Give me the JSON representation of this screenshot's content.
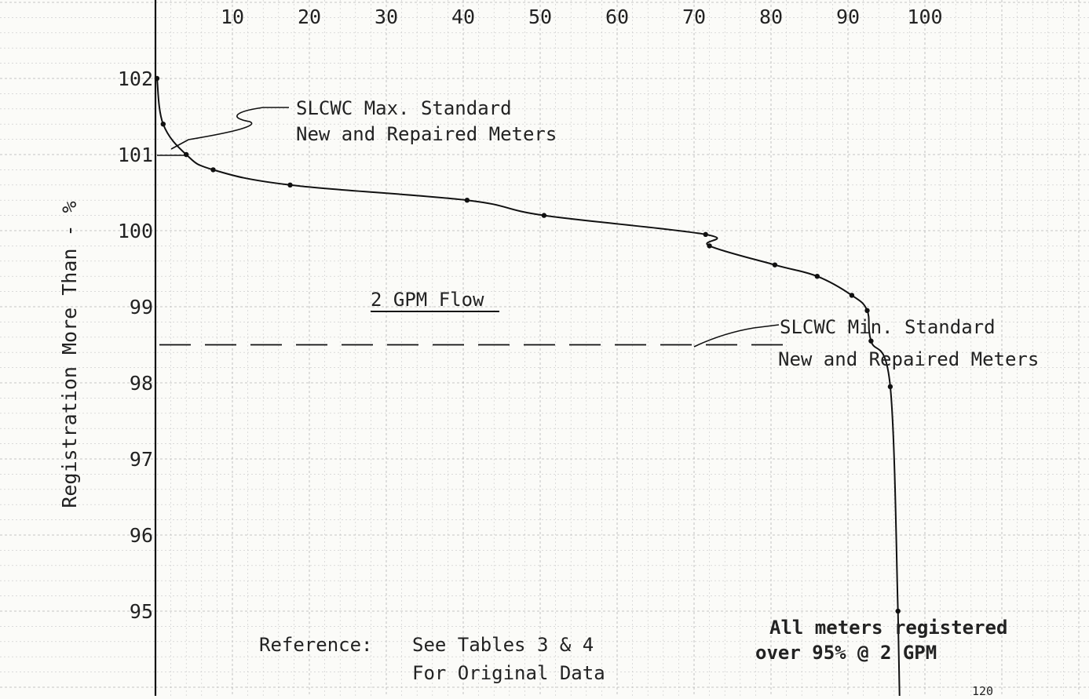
{
  "chart_data": {
    "type": "line",
    "title": "",
    "xlabel": "",
    "ylabel": "Registration More Than - %",
    "x_ticks": [
      "10",
      "20",
      "30",
      "40",
      "50",
      "60",
      "70",
      "80",
      "90",
      "100"
    ],
    "y_ticks": [
      "102",
      "101",
      "100",
      "99",
      "98",
      "97",
      "96",
      "95"
    ],
    "xlim": [
      0,
      100
    ],
    "ylim": [
      94,
      103
    ],
    "grid": true,
    "series": [
      {
        "x": [
          0.2,
          1.0,
          4.0,
          7.5,
          17.5,
          40.5,
          50.5,
          71.5,
          72.0,
          80.5,
          86.0,
          90.5,
          92.5,
          93.0,
          95.5,
          96.5
        ],
        "y": [
          102.0,
          101.4,
          101.0,
          100.8,
          100.6,
          100.4,
          100.2,
          99.95,
          99.8,
          99.55,
          99.4,
          99.15,
          98.95,
          98.55,
          97.95,
          95.0
        ]
      }
    ],
    "reference_lines": [
      {
        "y": 98.5,
        "style": "dashed",
        "label_lines": [
          "SLCWC Min. Standard",
          "New and Repaired Meters"
        ]
      },
      {
        "y": 101.0,
        "style": "tick",
        "label_lines": [
          "SLCWC Max. Standard",
          "New and Repaired Meters"
        ]
      }
    ]
  },
  "annotations": {
    "flow_label": "2 GPM Flow",
    "max_standard": [
      "SLCWC Max. Standard",
      "New and Repaired Meters"
    ],
    "min_standard": [
      "SLCWC Min. Standard",
      "New and Repaired Meters"
    ],
    "reference_prefix": "Reference:",
    "reference_lines": [
      "See Tables 3 & 4",
      "For Original Data"
    ],
    "note_lines": [
      "All meters registered",
      "over 95% @ 2 GPM"
    ],
    "page_number": "120"
  }
}
